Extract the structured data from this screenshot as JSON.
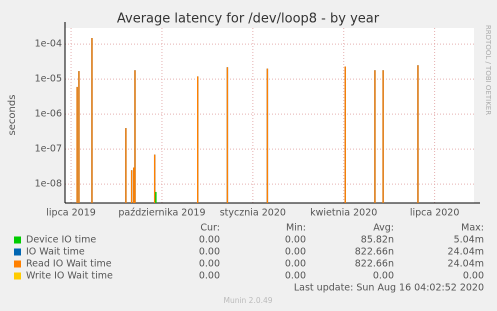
{
  "chart_data": {
    "type": "spike",
    "title": "Average latency for /dev/loop8 - by year",
    "y_label": "seconds",
    "side_text": "RRDTOOL / TOBI OETIKER",
    "log_y": true,
    "grid": true,
    "ylim": [
      2.9e-09,
      0.00029
    ],
    "yticks": [
      {
        "value": 1e-08,
        "label": "1e-08"
      },
      {
        "value": 1e-07,
        "label": "1e-07"
      },
      {
        "value": 1e-06,
        "label": "1e-06"
      },
      {
        "value": 1e-05,
        "label": "1e-05"
      },
      {
        "value": 0.0001,
        "label": "1e-04"
      }
    ],
    "xlim": [
      -0.2,
      13.3
    ],
    "xticks": [
      {
        "value": 0,
        "label": "lipca 2019"
      },
      {
        "value": 3,
        "label": "października 2019"
      },
      {
        "value": 6,
        "label": "stycznia 2020"
      },
      {
        "value": 9,
        "label": "kwietnia 2020"
      },
      {
        "value": 12,
        "label": "lipca 2020"
      }
    ],
    "stats_headers": [
      "Cur:",
      "Min:",
      "Avg:",
      "Max:"
    ],
    "series": [
      {
        "name": "Device IO time",
        "color": "#00cc00",
        "x": [
          2.8
        ],
        "values": [
          6e-09
        ],
        "stats": [
          "0.00",
          "0.00",
          "85.82n",
          "5.04m"
        ]
      },
      {
        "name": "IO Wait time",
        "color": "#0066b3",
        "x": [
          0.2,
          0.26,
          0.69,
          1.81,
          2.0,
          2.07,
          2.11,
          2.76,
          4.18,
          5.16,
          6.48,
          9.05,
          10.03,
          10.3,
          11.45
        ],
        "values": [
          6e-06,
          1.7e-05,
          0.00015,
          4e-07,
          2.5e-08,
          3e-08,
          1.8e-05,
          7e-08,
          1.2e-05,
          2.2e-05,
          2e-05,
          2.3e-05,
          1.8e-05,
          1.8e-05,
          2.5e-05
        ],
        "stats": [
          "0.00",
          "0.00",
          "822.66n",
          "24.04m"
        ]
      },
      {
        "name": "Read IO Wait time",
        "color": "#ff8000",
        "x": [
          0.2,
          0.26,
          0.69,
          1.81,
          2.0,
          2.07,
          2.11,
          2.76,
          4.18,
          5.16,
          6.48,
          9.05,
          10.03,
          10.3,
          11.45
        ],
        "values": [
          6e-06,
          1.7e-05,
          0.00015,
          4e-07,
          2.5e-08,
          3e-08,
          1.8e-05,
          7e-08,
          1.2e-05,
          2.2e-05,
          2e-05,
          2.3e-05,
          1.8e-05,
          1.8e-05,
          2.5e-05
        ],
        "stats": [
          "0.00",
          "0.00",
          "822.66n",
          "24.04m"
        ]
      },
      {
        "name": "Write IO Wait time",
        "color": "#ffcc00",
        "x": [],
        "values": [],
        "stats": [
          "0.00",
          "0.00",
          "0.00",
          "0.00"
        ]
      }
    ],
    "last_update": "Last update: Sun Aug 16 04:02:52 2020",
    "footer": "Munin 2.0.49"
  }
}
